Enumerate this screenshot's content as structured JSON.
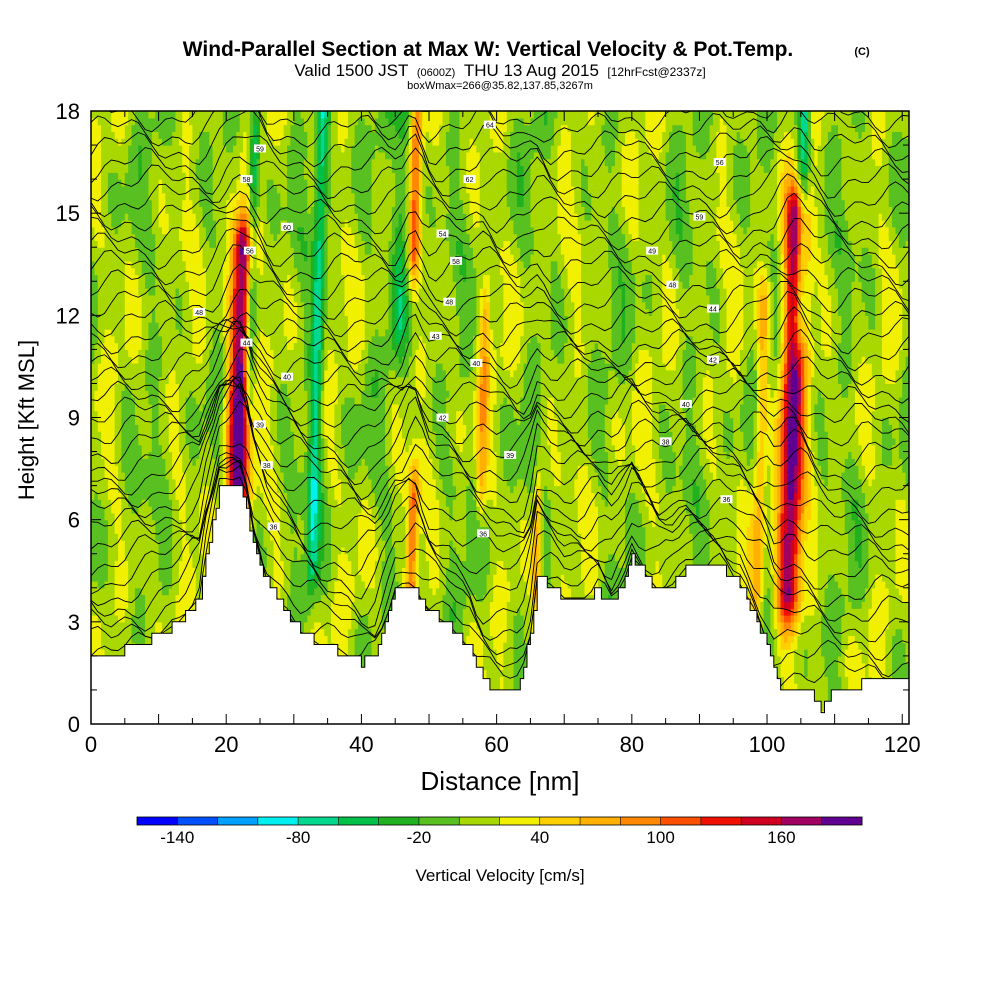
{
  "chart_data": {
    "type": "heatmap",
    "title": "Wind-Parallel Section at Max W: Vertical Velocity & Pot.Temp.",
    "title_mark": "(C)",
    "subtitle_parts": [
      "Valid 1500 JST",
      "(0600Z)",
      "THU 13 Aug 2015",
      "[12hrFcst@2337z]"
    ],
    "subtitle2": "boxWmax=266@35.82,137.85,3267m",
    "xlabel": "Distance [nm]",
    "ylabel": "Height [Kft MSL]",
    "xlim": [
      0,
      121
    ],
    "ylim": [
      0,
      18
    ],
    "x_ticks": [
      0,
      20,
      40,
      60,
      80,
      100,
      120
    ],
    "y_ticks": [
      0,
      3,
      6,
      9,
      12,
      15,
      18
    ],
    "colorbar": {
      "label": "Vertical Velocity [cm/s]",
      "min": -160,
      "max": 200,
      "step": 20,
      "tick_values": [
        -140,
        -80,
        -20,
        40,
        100,
        160
      ],
      "tick_labels": [
        "-140",
        "-80",
        "-20",
        "40",
        "100",
        "160"
      ],
      "colors": [
        "#0000ff",
        "#0050ff",
        "#00a0ff",
        "#00f0f0",
        "#00d890",
        "#00c048",
        "#20b020",
        "#58c020",
        "#a8d800",
        "#f0f000",
        "#ffd000",
        "#ffb000",
        "#ff8800",
        "#ff5000",
        "#f01000",
        "#d00020",
        "#a00060",
        "#600090"
      ]
    },
    "terrain_kft": [
      [
        0,
        2.0
      ],
      [
        3,
        2.0
      ],
      [
        6,
        2.3
      ],
      [
        10,
        2.6
      ],
      [
        13,
        3.0
      ],
      [
        16,
        3.7
      ],
      [
        17,
        5.0
      ],
      [
        19,
        6.9
      ],
      [
        22,
        6.9
      ],
      [
        23,
        6.3
      ],
      [
        24,
        5.2
      ],
      [
        26,
        4.2
      ],
      [
        28,
        3.5
      ],
      [
        31,
        2.7
      ],
      [
        34,
        2.3
      ],
      [
        36,
        2.2
      ],
      [
        38,
        2.0
      ],
      [
        40,
        1.8
      ],
      [
        42,
        2.1
      ],
      [
        44,
        3.3
      ],
      [
        45,
        3.9
      ],
      [
        48,
        3.9
      ],
      [
        50,
        3.3
      ],
      [
        53,
        2.9
      ],
      [
        56,
        2.2
      ],
      [
        58,
        1.3
      ],
      [
        60,
        1.0
      ],
      [
        63,
        1.0
      ],
      [
        65,
        2.6
      ],
      [
        66,
        4.3
      ],
      [
        68,
        4.1
      ],
      [
        70,
        3.7
      ],
      [
        73,
        3.7
      ],
      [
        75,
        3.9
      ],
      [
        77,
        3.5
      ],
      [
        79,
        4.3
      ],
      [
        80,
        4.9
      ],
      [
        82,
        4.4
      ],
      [
        84,
        3.9
      ],
      [
        86,
        4.1
      ],
      [
        88,
        4.6
      ],
      [
        93,
        4.6
      ],
      [
        96,
        4.1
      ],
      [
        98,
        3.2
      ],
      [
        100,
        2.4
      ],
      [
        101,
        1.7
      ],
      [
        102,
        1.0
      ],
      [
        104,
        1.0
      ],
      [
        106,
        0.9
      ],
      [
        107,
        0.8
      ],
      [
        108,
        0.3
      ],
      [
        109,
        0.8
      ],
      [
        111,
        1.0
      ],
      [
        114,
        1.2
      ],
      [
        118,
        1.3
      ],
      [
        121,
        1.3
      ]
    ],
    "updrafts": [
      {
        "x": 22.0,
        "z_bottom": 6.5,
        "z_top": 13.8,
        "w": 196,
        "width_nm": 1.6
      },
      {
        "x": 103.8,
        "z_bottom": 4.0,
        "z_top": 14.8,
        "w": 180,
        "width_nm": 1.7
      },
      {
        "x": 47.5,
        "z_bottom": 3.8,
        "z_top": 6.5,
        "w": 90,
        "width_nm": 0.8
      },
      {
        "x": 66.0,
        "z_bottom": 4.3,
        "z_top": 6.5,
        "w": 70,
        "width_nm": 0.7
      },
      {
        "x": 58.0,
        "z_bottom": 7.0,
        "z_top": 12.0,
        "w": 55,
        "width_nm": 0.8
      },
      {
        "x": 48.0,
        "z_bottom": 14.0,
        "z_top": 18.0,
        "w": 80,
        "width_nm": 0.8
      },
      {
        "x": 99.0,
        "z_bottom": 4.0,
        "z_top": 12.0,
        "w": 60,
        "width_nm": 0.9
      }
    ],
    "downdrafts": [
      {
        "x": 23.8,
        "z_bottom": 10.0,
        "z_top": 17.0,
        "w": -80,
        "width_nm": 0.8
      },
      {
        "x": 33.5,
        "z_bottom": 5.0,
        "z_top": 18.0,
        "w": -75,
        "width_nm": 0.9
      },
      {
        "x": 105.2,
        "z_bottom": 12.0,
        "z_top": 18.0,
        "w": -95,
        "width_nm": 0.9
      },
      {
        "x": 46.0,
        "z_bottom": 12.0,
        "z_top": 18.0,
        "w": -45,
        "width_nm": 1.2
      }
    ],
    "isentrope_labels": [
      {
        "x": 25,
        "z": 16.9,
        "label": "59"
      },
      {
        "x": 23,
        "z": 16.0,
        "label": "58"
      },
      {
        "x": 29,
        "z": 14.6,
        "label": "60"
      },
      {
        "x": 23.5,
        "z": 13.9,
        "label": "56"
      },
      {
        "x": 16,
        "z": 12.1,
        "label": "48"
      },
      {
        "x": 23,
        "z": 11.2,
        "label": "44"
      },
      {
        "x": 29,
        "z": 10.2,
        "label": "40"
      },
      {
        "x": 25,
        "z": 8.8,
        "label": "39"
      },
      {
        "x": 26,
        "z": 7.6,
        "label": "38"
      },
      {
        "x": 27,
        "z": 5.8,
        "label": "36"
      },
      {
        "x": 59,
        "z": 17.6,
        "label": "64"
      },
      {
        "x": 56,
        "z": 16.0,
        "label": "62"
      },
      {
        "x": 52,
        "z": 14.4,
        "label": "54"
      },
      {
        "x": 54,
        "z": 13.6,
        "label": "58"
      },
      {
        "x": 53,
        "z": 12.4,
        "label": "48"
      },
      {
        "x": 51,
        "z": 11.4,
        "label": "43"
      },
      {
        "x": 57,
        "z": 10.6,
        "label": "40"
      },
      {
        "x": 52,
        "z": 9.0,
        "label": "42"
      },
      {
        "x": 62,
        "z": 7.9,
        "label": "39"
      },
      {
        "x": 58,
        "z": 5.6,
        "label": "36"
      },
      {
        "x": 93,
        "z": 16.5,
        "label": "56"
      },
      {
        "x": 90,
        "z": 14.9,
        "label": "59"
      },
      {
        "x": 83,
        "z": 13.9,
        "label": "49"
      },
      {
        "x": 86,
        "z": 12.9,
        "label": "48"
      },
      {
        "x": 92,
        "z": 12.2,
        "label": "44"
      },
      {
        "x": 92,
        "z": 10.7,
        "label": "42"
      },
      {
        "x": 88,
        "z": 9.4,
        "label": "40"
      },
      {
        "x": 85,
        "z": 8.3,
        "label": "38"
      },
      {
        "x": 94,
        "z": 6.6,
        "label": "36"
      }
    ]
  }
}
